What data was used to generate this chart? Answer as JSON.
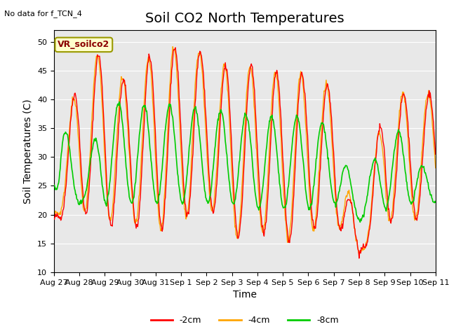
{
  "title": "Soil CO2 North Temperatures",
  "no_data_text": "No data for f_TCN_4",
  "xlabel": "Time",
  "ylabel": "Soil Temperatures (C)",
  "ylim": [
    10,
    52
  ],
  "yticks": [
    10,
    15,
    20,
    25,
    30,
    35,
    40,
    45,
    50
  ],
  "bg_color": "#e8e8e8",
  "legend_label": "VR_soilco2",
  "line_labels": [
    "-2cm",
    "-4cm",
    "-8cm"
  ],
  "line_colors": [
    "#ff0000",
    "#ffa500",
    "#00cc00"
  ],
  "x_tick_labels": [
    "Aug 27",
    "Aug 28",
    "Aug 29",
    "Aug 30",
    "Aug 31",
    "Sep 1",
    "Sep 2",
    "Sep 3",
    "Sep 4",
    "Sep 5",
    "Sep 6",
    "Sep 7",
    "Sep 8",
    "Sep 9",
    "Sep 10",
    "Sep 11"
  ],
  "num_days": 15,
  "points_per_day": 48,
  "title_fontsize": 14,
  "axis_label_fontsize": 10,
  "tick_fontsize": 8
}
